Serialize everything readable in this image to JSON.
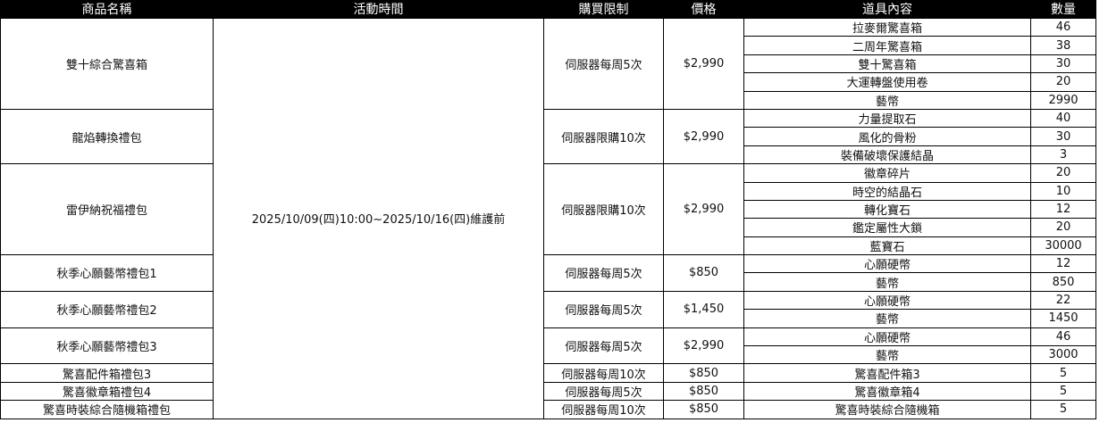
{
  "headers": {
    "name": "商品名稱",
    "time": "活動時間",
    "limit": "購買限制",
    "price": "價格",
    "content": "道具內容",
    "qty": "數量"
  },
  "event_time": "2025/10/09(四)10:00~2025/10/16(四)維護前",
  "products": [
    {
      "name": "雙十綜合驚喜箱",
      "limit": "伺服器每周5次",
      "price": "$2,990",
      "items": [
        {
          "name": "拉麥爾驚喜箱",
          "qty": "46"
        },
        {
          "name": "二周年驚喜箱",
          "qty": "38"
        },
        {
          "name": "雙十驚喜箱",
          "qty": "30"
        },
        {
          "name": "大運轉盤使用卷",
          "qty": "20"
        },
        {
          "name": "藝幣",
          "qty": "2990"
        }
      ]
    },
    {
      "name": "龍焰轉換禮包",
      "limit": "伺服器限購10次",
      "price": "$2,990",
      "items": [
        {
          "name": "力量提取石",
          "qty": "40"
        },
        {
          "name": "風化的骨粉",
          "qty": "30"
        },
        {
          "name": "裝備破壞保護結晶",
          "qty": "3"
        }
      ]
    },
    {
      "name": "雷伊納祝福禮包",
      "limit": "伺服器限購10次",
      "price": "$2,990",
      "items": [
        {
          "name": "徽章碎片",
          "qty": "20"
        },
        {
          "name": "時空的結晶石",
          "qty": "10"
        },
        {
          "name": "轉化寶石",
          "qty": "12"
        },
        {
          "name": "鑑定屬性大鎖",
          "qty": "20"
        },
        {
          "name": "藍寶石",
          "qty": "30000"
        }
      ]
    },
    {
      "name": "秋季心願藝幣禮包1",
      "limit": "伺服器每周5次",
      "price": "$850",
      "items": [
        {
          "name": "心願硬幣",
          "qty": "12"
        },
        {
          "name": "藝幣",
          "qty": "850"
        }
      ]
    },
    {
      "name": "秋季心願藝幣禮包2",
      "limit": "伺服器每周5次",
      "price": "$1,450",
      "items": [
        {
          "name": "心願硬幣",
          "qty": "22"
        },
        {
          "name": "藝幣",
          "qty": "1450"
        }
      ]
    },
    {
      "name": "秋季心願藝幣禮包3",
      "limit": "伺服器每周5次",
      "price": "$2,990",
      "items": [
        {
          "name": "心願硬幣",
          "qty": "46"
        },
        {
          "name": "藝幣",
          "qty": "3000"
        }
      ]
    },
    {
      "name": "驚喜配件箱禮包3",
      "limit": "伺服器每周10次",
      "price": "$850",
      "items": [
        {
          "name": "驚喜配件箱3",
          "qty": "5"
        }
      ]
    },
    {
      "name": "驚喜徽章箱禮包4",
      "limit": "伺服器每周5次",
      "price": "$850",
      "items": [
        {
          "name": "驚喜徽章箱4",
          "qty": "5"
        }
      ]
    },
    {
      "name": "驚喜時裝綜合隨機箱禮包",
      "limit": "伺服器每周10次",
      "price": "$850",
      "items": [
        {
          "name": "驚喜時裝綜合隨機箱",
          "qty": "5"
        }
      ]
    }
  ]
}
